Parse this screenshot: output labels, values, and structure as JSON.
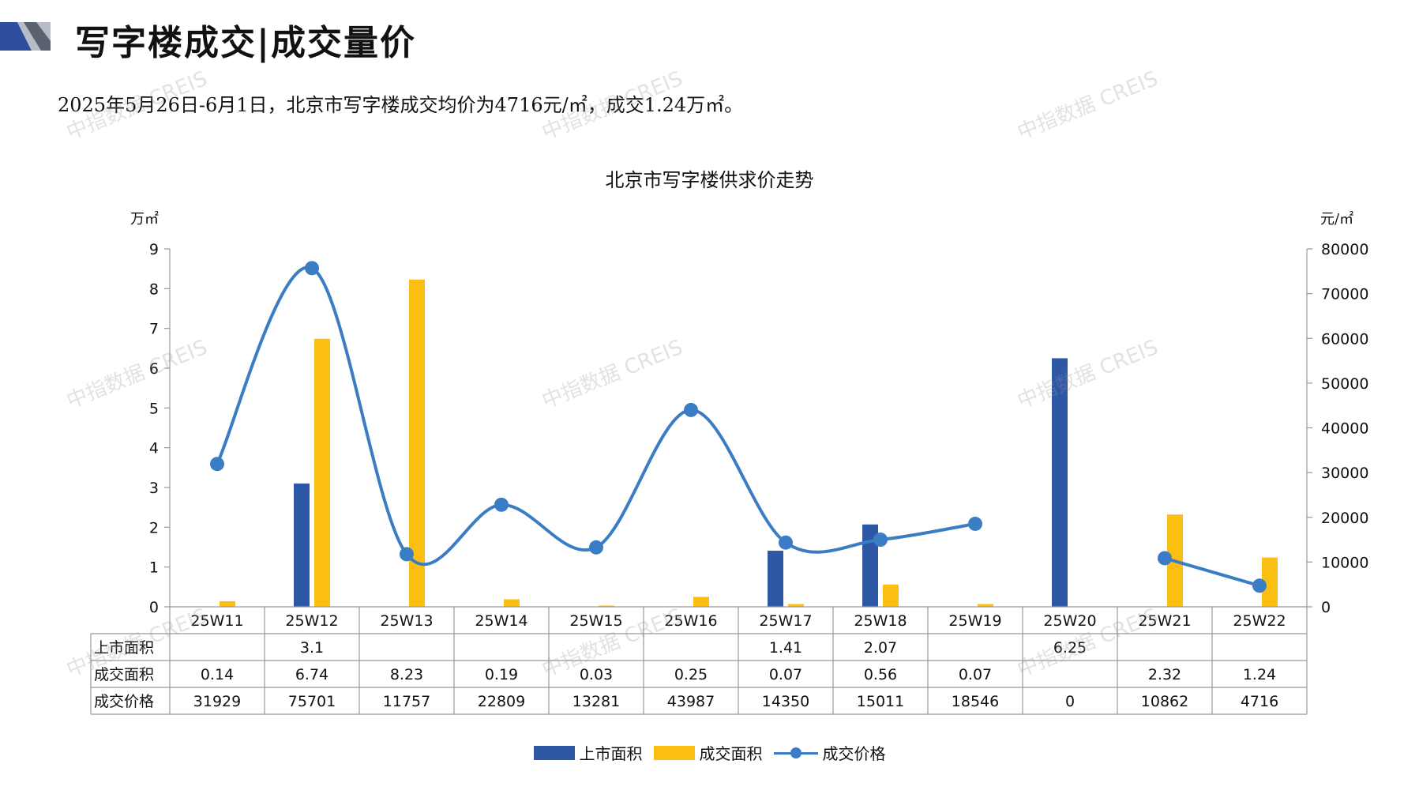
{
  "header": {
    "title": "写字楼成交|成交量价"
  },
  "summary": "2025年5月26日-6月1日，北京市写字楼成交均价为4716元/㎡，成交1.24万㎡。",
  "watermark": "中指数据 CREIS",
  "colors": {
    "supply": "#2e57a6",
    "deal": "#fbbf13",
    "price": "#3b7dc4",
    "accent": "#2e4f9e"
  },
  "chart_data": {
    "type": "bar",
    "title": "北京市写字楼供求价走势",
    "y_left_unit": "万㎡",
    "y_right_unit": "元/㎡",
    "y_left_ticks": [
      "0",
      "1",
      "2",
      "3",
      "4",
      "5",
      "6",
      "7",
      "8",
      "9"
    ],
    "y_right_ticks": [
      "0",
      "10000",
      "20000",
      "30000",
      "40000",
      "50000",
      "60000",
      "70000",
      "80000"
    ],
    "ylim_left": [
      0,
      9
    ],
    "ylim_right": [
      0,
      80000
    ],
    "categories": [
      "25W11",
      "25W12",
      "25W13",
      "25W14",
      "25W15",
      "25W16",
      "25W17",
      "25W18",
      "25W19",
      "25W20",
      "25W21",
      "25W22"
    ],
    "series": [
      {
        "name": "上市面积",
        "type": "bar",
        "axis": "left",
        "values": [
          null,
          3.1,
          null,
          null,
          null,
          null,
          1.41,
          2.07,
          null,
          6.25,
          null,
          null
        ],
        "labels": [
          "",
          "3.1",
          "",
          "",
          "",
          "",
          "1.41",
          "2.07",
          "",
          "6.25",
          "",
          ""
        ]
      },
      {
        "name": "成交面积",
        "type": "bar",
        "axis": "left",
        "values": [
          0.14,
          6.74,
          8.23,
          0.19,
          0.03,
          0.25,
          0.07,
          0.56,
          0.07,
          null,
          2.32,
          1.24
        ],
        "labels": [
          "0.14",
          "6.74",
          "8.23",
          "0.19",
          "0.03",
          "0.25",
          "0.07",
          "0.56",
          "0.07",
          "",
          "2.32",
          "1.24"
        ]
      },
      {
        "name": "成交价格",
        "type": "line",
        "axis": "right",
        "values": [
          31929,
          75701,
          11757,
          22809,
          13281,
          43987,
          14350,
          15011,
          18546,
          null,
          10862,
          4716
        ],
        "labels": [
          "31929",
          "75701",
          "11757",
          "22809",
          "13281",
          "43987",
          "14350",
          "15011",
          "18546",
          "0",
          "10862",
          "4716"
        ]
      }
    ],
    "legend": "bottom",
    "grid": false
  }
}
